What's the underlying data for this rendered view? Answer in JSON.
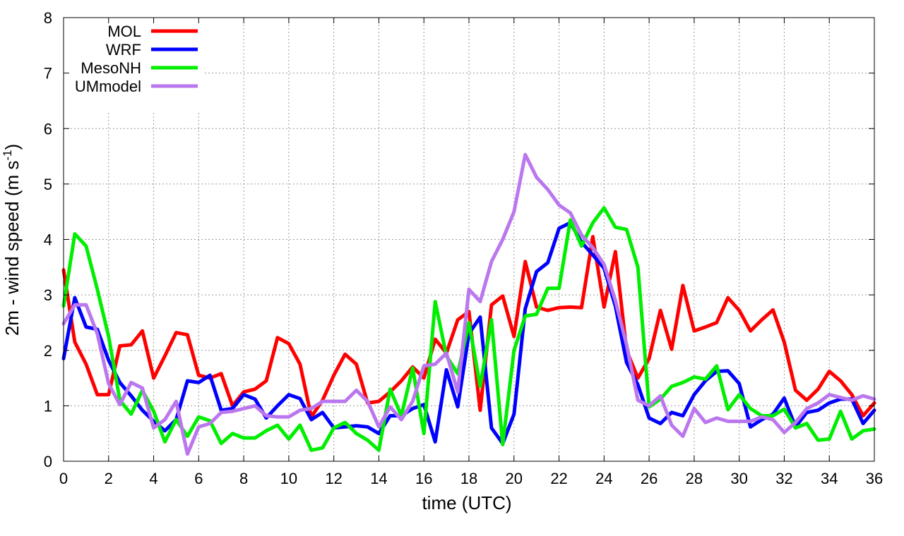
{
  "chart_data": {
    "type": "line",
    "title": "",
    "xlabel": "time (UTC)",
    "ylabel": "2m - wind speed  (m s",
    "ylabel_sup": "-1",
    "ylabel_close": ")",
    "xlim": [
      0,
      36
    ],
    "ylim": [
      0,
      8
    ],
    "xticks": [
      "0",
      "2",
      "4",
      "6",
      "8",
      "10",
      "12",
      "14",
      "16",
      "18",
      "20",
      "22",
      "24",
      "26",
      "28",
      "30",
      "32",
      "34",
      "36"
    ],
    "yticks": [
      "0",
      "1",
      "2",
      "3",
      "4",
      "5",
      "6",
      "7",
      "8"
    ],
    "grid": true,
    "legend_position": "top-left",
    "x": [
      0,
      0.5,
      1,
      1.5,
      2,
      2.5,
      3,
      3.5,
      4,
      4.5,
      5,
      5.5,
      6,
      6.5,
      7,
      7.5,
      8,
      8.5,
      9,
      9.5,
      10,
      10.5,
      11,
      11.5,
      12,
      12.5,
      13,
      13.5,
      14,
      14.5,
      15,
      15.5,
      16,
      16.5,
      17,
      17.5,
      18,
      18.5,
      19,
      19.5,
      20,
      20.5,
      21,
      21.5,
      22,
      22.5,
      23,
      23.5,
      24,
      24.5,
      25,
      25.5,
      26,
      26.5,
      27,
      27.5,
      28,
      28.5,
      29,
      29.5,
      30,
      30.5,
      31,
      31.5,
      32,
      32.5,
      33,
      33.5,
      34,
      34.5,
      35,
      35.5,
      36
    ],
    "series": [
      {
        "name": "MOL",
        "color": "#ff0000",
        "values": [
          3.45,
          2.15,
          1.75,
          1.2,
          1.2,
          2.08,
          2.1,
          2.35,
          1.5,
          1.9,
          2.32,
          2.28,
          1.55,
          1.5,
          1.58,
          1.0,
          1.25,
          1.3,
          1.45,
          2.23,
          2.12,
          1.75,
          0.8,
          1.1,
          1.55,
          1.93,
          1.75,
          1.05,
          1.08,
          1.25,
          1.45,
          1.7,
          1.5,
          2.2,
          1.95,
          2.55,
          2.7,
          0.92,
          2.82,
          2.98,
          2.25,
          3.6,
          2.78,
          2.72,
          2.77,
          2.78,
          2.77,
          4.05,
          2.78,
          3.78,
          2.0,
          1.5,
          1.85,
          2.72,
          2.02,
          3.17,
          2.35,
          2.42,
          2.5,
          2.95,
          2.72,
          2.35,
          2.55,
          2.73,
          2.15,
          1.28,
          1.1,
          1.3,
          1.62,
          1.45,
          1.2,
          0.82,
          1.05
        ]
      },
      {
        "name": "WRF",
        "color": "#0000ff",
        "values": [
          1.85,
          2.95,
          2.42,
          2.38,
          1.82,
          1.42,
          1.18,
          0.92,
          0.72,
          0.55,
          0.75,
          1.45,
          1.42,
          1.55,
          0.92,
          0.95,
          1.2,
          1.12,
          0.78,
          1.0,
          1.2,
          1.13,
          0.75,
          0.88,
          0.6,
          0.62,
          0.64,
          0.62,
          0.5,
          0.82,
          0.82,
          0.95,
          1.02,
          0.35,
          1.65,
          0.98,
          2.3,
          2.6,
          0.6,
          0.32,
          0.85,
          2.75,
          3.42,
          3.58,
          4.2,
          4.3,
          3.95,
          3.72,
          3.48,
          2.8,
          1.78,
          1.38,
          0.78,
          0.68,
          0.88,
          0.82,
          1.2,
          1.45,
          1.62,
          1.63,
          1.4,
          0.62,
          0.75,
          0.85,
          1.14,
          0.62,
          0.88,
          0.92,
          1.05,
          1.12,
          1.12,
          0.68,
          0.92
        ]
      },
      {
        "name": "MesoNH",
        "color": "#00ee00",
        "values": [
          2.8,
          4.1,
          3.88,
          3.1,
          2.25,
          1.1,
          0.85,
          1.28,
          0.9,
          0.35,
          0.75,
          0.45,
          0.8,
          0.73,
          0.32,
          0.5,
          0.42,
          0.42,
          0.55,
          0.65,
          0.4,
          0.65,
          0.2,
          0.24,
          0.6,
          0.7,
          0.5,
          0.38,
          0.2,
          1.3,
          0.82,
          1.68,
          0.5,
          2.88,
          1.9,
          1.58,
          2.5,
          1.35,
          2.55,
          0.3,
          2.0,
          2.62,
          2.65,
          3.12,
          3.12,
          4.35,
          3.88,
          4.3,
          4.57,
          4.22,
          4.18,
          3.5,
          0.98,
          1.12,
          1.35,
          1.42,
          1.52,
          1.48,
          1.72,
          0.93,
          1.2,
          0.95,
          0.82,
          0.82,
          0.94,
          0.6,
          0.68,
          0.38,
          0.4,
          0.9,
          0.4,
          0.55,
          0.58
        ]
      },
      {
        "name": "UMmodel",
        "color": "#bb77ee",
        "values": [
          2.48,
          2.82,
          2.82,
          2.3,
          1.4,
          1.02,
          1.42,
          1.32,
          0.6,
          0.75,
          1.08,
          0.13,
          0.62,
          0.68,
          0.88,
          0.9,
          0.95,
          1.0,
          0.82,
          0.8,
          0.8,
          0.92,
          0.95,
          1.08,
          1.08,
          1.08,
          1.28,
          1.08,
          0.62,
          0.98,
          0.75,
          1.08,
          1.72,
          1.75,
          1.95,
          1.25,
          3.1,
          2.88,
          3.6,
          4.0,
          4.5,
          5.53,
          5.12,
          4.9,
          4.62,
          4.48,
          4.08,
          3.85,
          3.55,
          2.9,
          2.1,
          1.1,
          1.0,
          1.18,
          0.65,
          0.45,
          0.95,
          0.7,
          0.78,
          0.72,
          0.72,
          0.72,
          0.8,
          0.75,
          0.52,
          0.7,
          0.95,
          1.05,
          1.2,
          1.15,
          1.1,
          1.18,
          1.12
        ]
      }
    ]
  }
}
